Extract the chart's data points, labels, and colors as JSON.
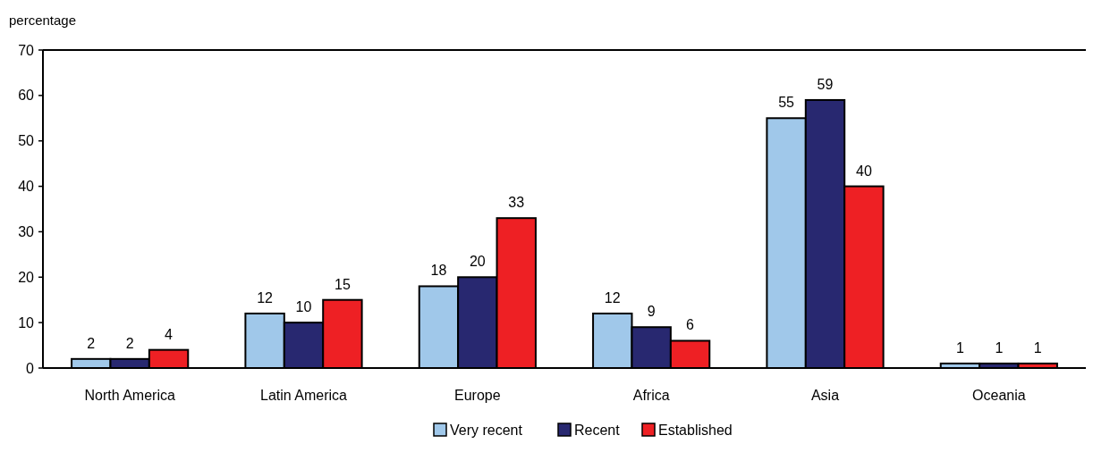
{
  "chart_data": {
    "type": "bar",
    "ylabel": "percentage",
    "categories": [
      "North America",
      "Latin America",
      "Europe",
      "Africa",
      "Asia",
      "Oceania"
    ],
    "series": [
      {
        "name": "Very recent",
        "color": "#a0c8ea",
        "values": [
          2,
          12,
          18,
          12,
          55,
          1
        ]
      },
      {
        "name": "Recent",
        "color": "#282870",
        "values": [
          2,
          10,
          20,
          9,
          59,
          1
        ]
      },
      {
        "name": "Established",
        "color": "#ee2024",
        "values": [
          4,
          15,
          33,
          6,
          40,
          1
        ]
      }
    ],
    "ylim": [
      0,
      70
    ],
    "yticks": [
      0,
      10,
      20,
      30,
      40,
      50,
      60,
      70
    ],
    "grid": false,
    "legend": "bottom",
    "data_labels": true
  }
}
